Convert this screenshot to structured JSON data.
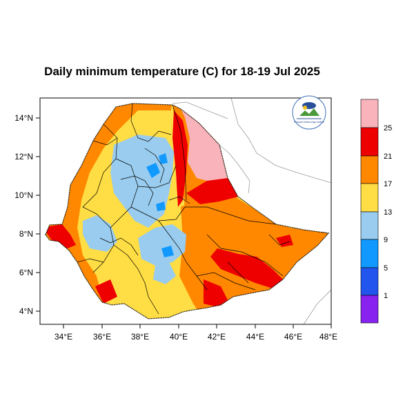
{
  "title": "Daily minimum temperature (C) for 18-19 Jul 2025",
  "map": {
    "lon_ticks": [
      "34°E",
      "36°E",
      "38°E",
      "40°E",
      "42°E",
      "44°E",
      "46°E",
      "48°E"
    ],
    "lat_ticks": [
      "14°N",
      "12°N",
      "10°N",
      "8°N",
      "6°N",
      "4°N"
    ],
    "lon_range": [
      33.0,
      48.2
    ],
    "lat_range": [
      3.2,
      15.0
    ]
  },
  "colorbar": {
    "labels": [
      "25",
      "21",
      "17",
      "13",
      "9",
      "5",
      "1"
    ],
    "colors": [
      "#f9b3bb",
      "#ee0000",
      "#ff8800",
      "#ffdd44",
      "#99ccee",
      "#1199ff",
      "#2255ee",
      "#8822ee"
    ]
  },
  "palette": {
    "land_base": "#ffdd44",
    "warm": "#ff8800",
    "hot": "#ee0000",
    "very_hot": "#f9b3bb",
    "mild": "#99ccee",
    "cool": "#1199ff"
  },
  "logo": {
    "icon": "ethiopian-meteorology-institute-logo",
    "text": "Ethiopian Meteorology Institute"
  }
}
